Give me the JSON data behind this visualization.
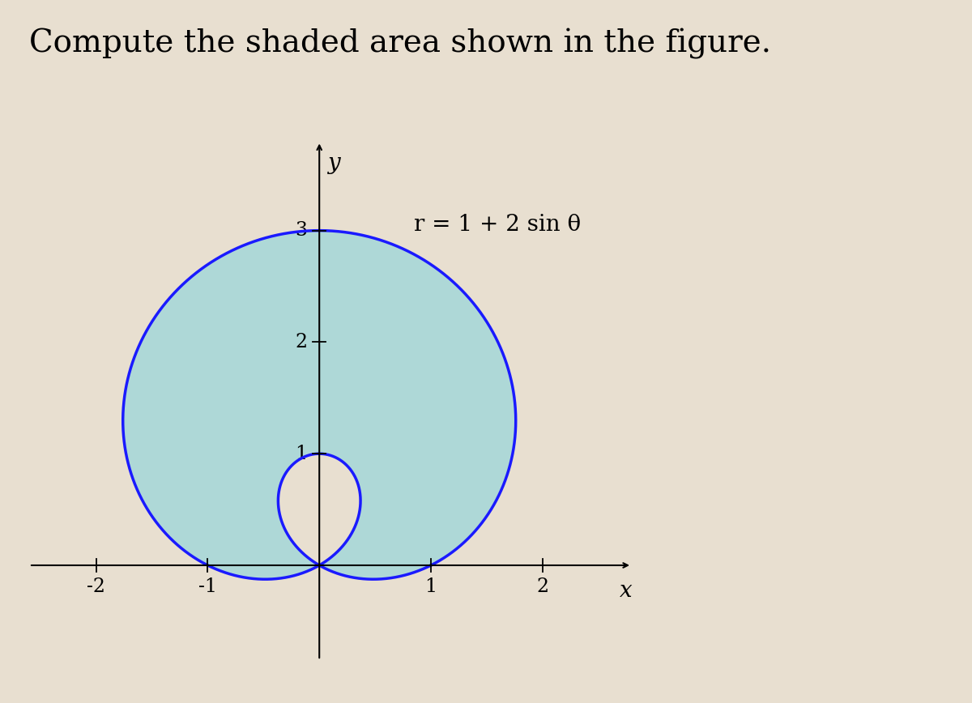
{
  "title": "Compute the shaded area shown in the figure.",
  "equation_label": "r = 1 + 2 sin θ",
  "figure_bg": "#e8dfd0",
  "curve_color": "#1a1aff",
  "curve_linewidth": 2.5,
  "shaded_color": "#a8d8d8",
  "shaded_alpha": 0.9,
  "axis_color": "#000000",
  "xlim": [
    -2.6,
    2.8
  ],
  "ylim": [
    -0.85,
    3.8
  ],
  "xticks": [
    -2,
    -1,
    1,
    2
  ],
  "yticks": [
    1,
    2,
    3
  ],
  "tick_fontsize": 17,
  "title_fontsize": 28,
  "label_fontsize": 20,
  "equation_fontsize": 20,
  "title_font": "serif"
}
